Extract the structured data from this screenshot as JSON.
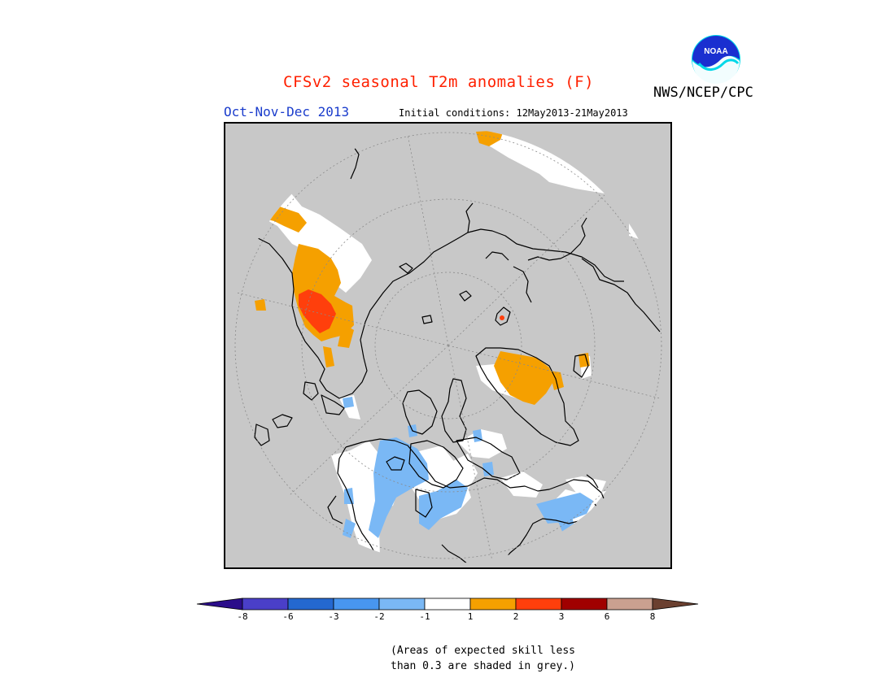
{
  "title": "CFSv2 seasonal T2m anomalies (F)",
  "season": "Oct-Nov-Dec 2013",
  "initial_conditions": "Initial conditions: 12May2013-21May2013",
  "organization": "NWS/NCEP/CPC",
  "logo_text": "NOAA",
  "legend": {
    "ticks": [
      "-8",
      "-6",
      "-3",
      "-2",
      "-1",
      "1",
      "2",
      "3",
      "6",
      "8"
    ],
    "colors": {
      "lt_neg8": "#2b0d8a",
      "neg8_neg6": "#4a3fc8",
      "neg6_neg3": "#2468d0",
      "neg3_neg2": "#4896f0",
      "neg2_neg1": "#7ab8f5",
      "neg1_1": "#ffffff",
      "1_2": "#f5a000",
      "2_3": "#ff3f0c",
      "3_6": "#a00000",
      "6_8": "#caa090",
      "gt_8": "#6b4030"
    },
    "skill_color": "#c8c8c8"
  },
  "note_line1": "(Areas of expected skill less",
  "note_line2": "than 0.3 are shaded in grey.)"
}
